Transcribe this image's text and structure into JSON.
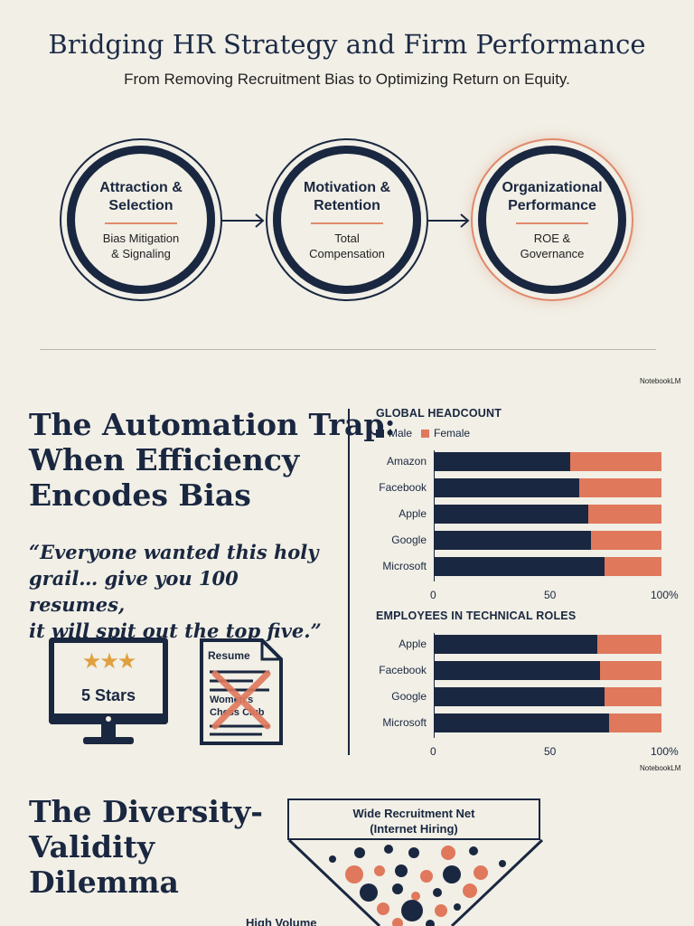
{
  "header": {
    "title": "Bridging HR Strategy and Firm Performance",
    "subtitle": "From Removing Recruitment Bias to Optimizing Return on Equity."
  },
  "flow": [
    {
      "title_line1": "Attraction &",
      "title_line2": "Selection",
      "sub_line1": "Bias Mitigation",
      "sub_line2": "& Signaling"
    },
    {
      "title_line1": "Motivation &",
      "title_line2": "Retention",
      "sub_line1": "Total",
      "sub_line2": "Compensation"
    },
    {
      "title_line1": "Organizational",
      "title_line2": "Performance",
      "sub_line1": "ROE &",
      "sub_line2": "Governance"
    }
  ],
  "branding": {
    "label": "NotebookLM"
  },
  "automation": {
    "heading_line1": "The Automation Trap:",
    "heading_line2": "When Efficiency",
    "heading_line3": "Encodes Bias",
    "quote_line1": "“Everyone wanted this holy",
    "quote_line2": "grail… give you 100 resumes,",
    "quote_line3": "it will spit out the top five.”",
    "monitor_label": "5 Stars",
    "resume_title": "Resume",
    "resume_crossed_line1": "Women's",
    "resume_crossed_line2": "Chess Club"
  },
  "colors": {
    "male": "#1a2740",
    "female": "#e0785c",
    "accent": "#e08a6c"
  },
  "chart_data": [
    {
      "type": "bar",
      "orientation": "horizontal-stacked-100",
      "title": "GLOBAL HEADCOUNT",
      "categories": [
        "Amazon",
        "Facebook",
        "Apple",
        "Google",
        "Microsoft"
      ],
      "series": [
        {
          "name": "Male",
          "values": [
            60,
            64,
            68,
            69,
            75
          ]
        },
        {
          "name": "Female",
          "values": [
            40,
            36,
            32,
            31,
            25
          ]
        }
      ],
      "xticks": [
        "0",
        "50",
        "100%"
      ],
      "xlim": [
        0,
        100
      ],
      "legend": "top-left"
    },
    {
      "type": "bar",
      "orientation": "horizontal-stacked-100",
      "title": "EMPLOYEES IN TECHNICAL ROLES",
      "categories": [
        "Apple",
        "Facebook",
        "Google",
        "Microsoft"
      ],
      "series": [
        {
          "name": "Male",
          "values": [
            72,
            73,
            75,
            77
          ]
        },
        {
          "name": "Female",
          "values": [
            28,
            27,
            25,
            23
          ]
        }
      ],
      "xticks": [
        "0",
        "50",
        "100%"
      ],
      "xlim": [
        0,
        100
      ]
    }
  ],
  "diversity": {
    "heading_line1": "The Diversity-",
    "heading_line2": "Validity",
    "heading_line3": "Dilemma",
    "funnel_line1": "Wide Recruitment Net",
    "funnel_line2": "(Internet Hiring)",
    "cutoff_label": "High Volume"
  }
}
